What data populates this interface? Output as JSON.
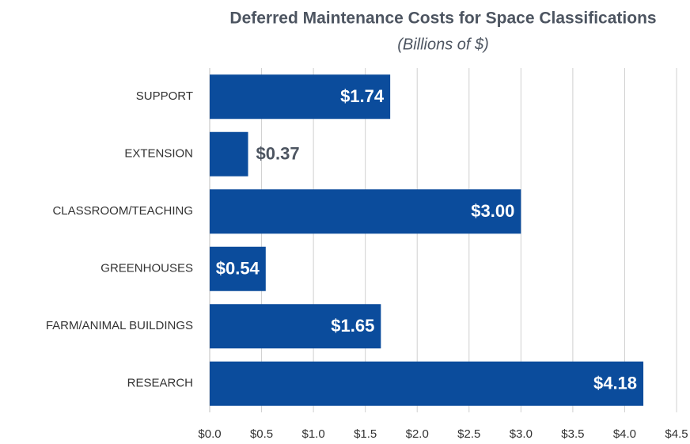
{
  "chart_data": {
    "type": "bar",
    "orientation": "horizontal",
    "title": "Deferred Maintenance Costs for Space Classifications",
    "subtitle": "(Billions of $)",
    "categories": [
      "SUPPORT",
      "EXTENSION",
      "CLASSROOM/TEACHING",
      "GREENHOUSES",
      "FARM/ANIMAL BUILDINGS",
      "RESEARCH"
    ],
    "values": [
      1.74,
      0.37,
      3.0,
      0.54,
      1.65,
      4.18
    ],
    "value_labels": [
      "$1.74",
      "$0.37",
      "$3.00",
      "$0.54",
      "$1.65",
      "$4.18"
    ],
    "color": "#0b4c9c",
    "xlim": [
      0,
      4.5
    ],
    "xticks": [
      {
        "value": 0,
        "label": "$0.0"
      },
      {
        "value": 0.5,
        "label": "$0.5"
      },
      {
        "value": 1,
        "label": "$1.0"
      },
      {
        "value": 1.5,
        "label": "$1.5"
      },
      {
        "value": 2,
        "label": "$2.0"
      },
      {
        "value": 2.5,
        "label": "$2.5"
      },
      {
        "value": 3,
        "label": "$3.0"
      },
      {
        "value": 3.5,
        "label": "$3.5"
      },
      {
        "value": 4,
        "label": "$4.0"
      },
      {
        "value": 4.5,
        "label": "$4.5"
      }
    ],
    "grid": true
  }
}
